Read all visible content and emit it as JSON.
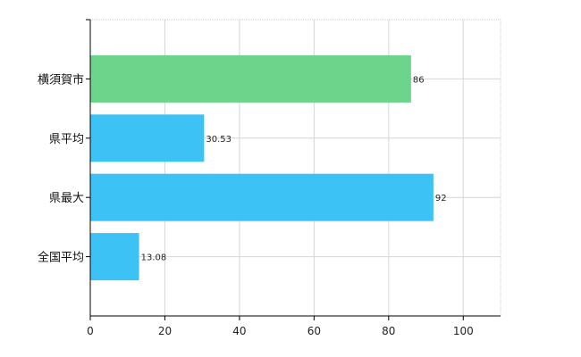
{
  "chart_data": {
    "type": "bar",
    "orientation": "horizontal",
    "categories": [
      "横須賀市",
      "県平均",
      "県最大",
      "全国平均"
    ],
    "values": [
      86,
      30.53,
      92,
      13.08
    ],
    "data_labels": [
      "86",
      "30.53",
      "92",
      "13.08"
    ],
    "bar_colors": [
      "#6dd48c",
      "#3cc2f5",
      "#3cc2f5",
      "#3cc2f5"
    ],
    "xlim": [
      0,
      110
    ],
    "x_ticks": [
      0,
      20,
      40,
      60,
      80,
      100
    ],
    "x_tick_labels": [
      "0",
      "20",
      "40",
      "60",
      "80",
      "100"
    ],
    "grid": true,
    "legend": "none"
  }
}
